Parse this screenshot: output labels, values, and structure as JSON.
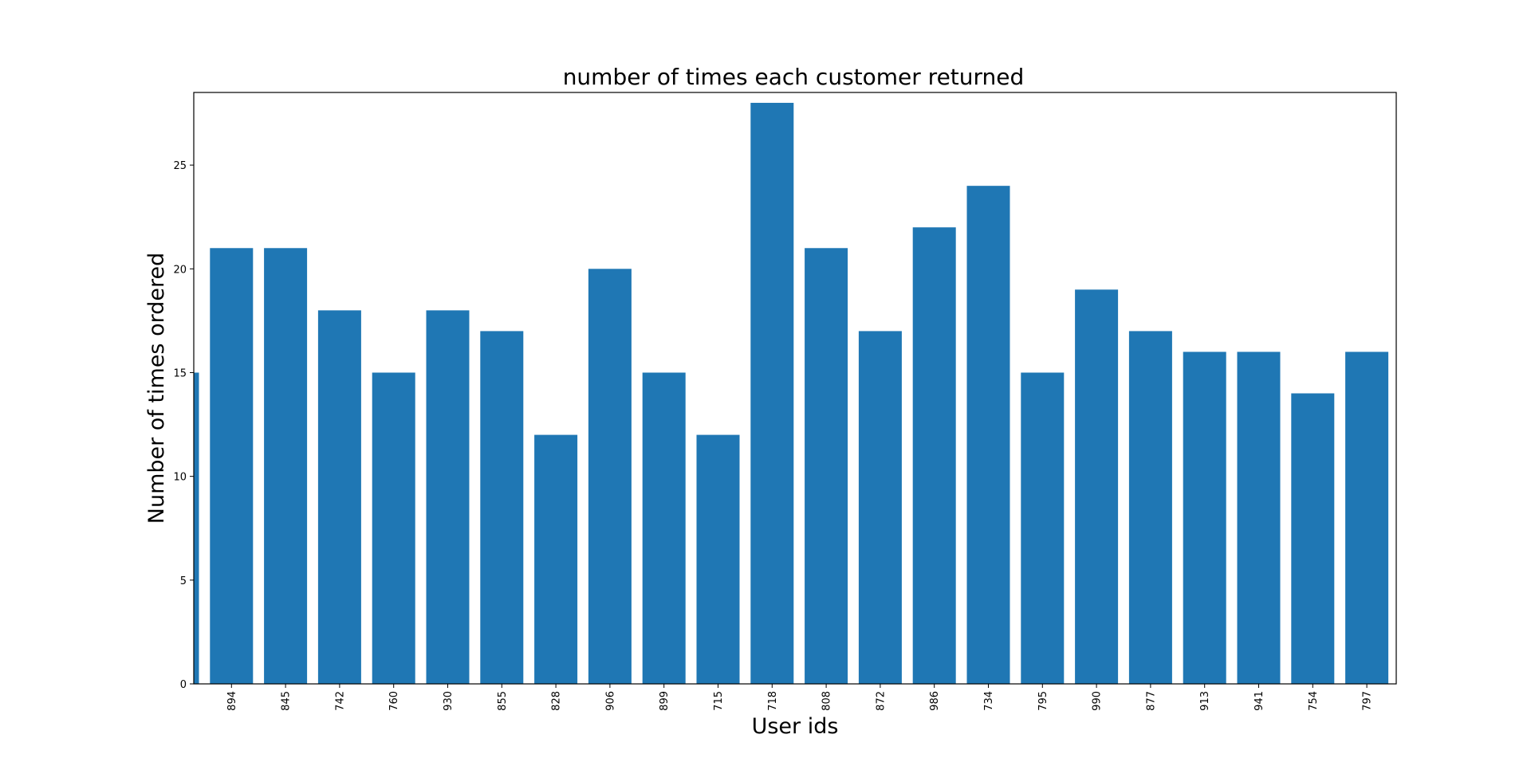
{
  "chart_data": {
    "type": "bar",
    "title": "number of times each customer returned",
    "xlabel": "User ids",
    "ylabel": "Number of times ordered",
    "ylim": [
      0,
      28.5
    ],
    "yticks": [
      0,
      5,
      10,
      15,
      20,
      25
    ],
    "categories": [
      "",
      "894",
      "845",
      "742",
      "760",
      "930",
      "855",
      "828",
      "906",
      "899",
      "715",
      "718",
      "808",
      "872",
      "986",
      "734",
      "795",
      "990",
      "877",
      "913",
      "941",
      "754",
      "797"
    ],
    "values": [
      15,
      21,
      21,
      18,
      15,
      18,
      17,
      12,
      20,
      15,
      12,
      28,
      21,
      17,
      22,
      24,
      15,
      19,
      17,
      16,
      16,
      14,
      16
    ],
    "bar_color": "#1f77b4",
    "grid": false,
    "legend": false
  }
}
